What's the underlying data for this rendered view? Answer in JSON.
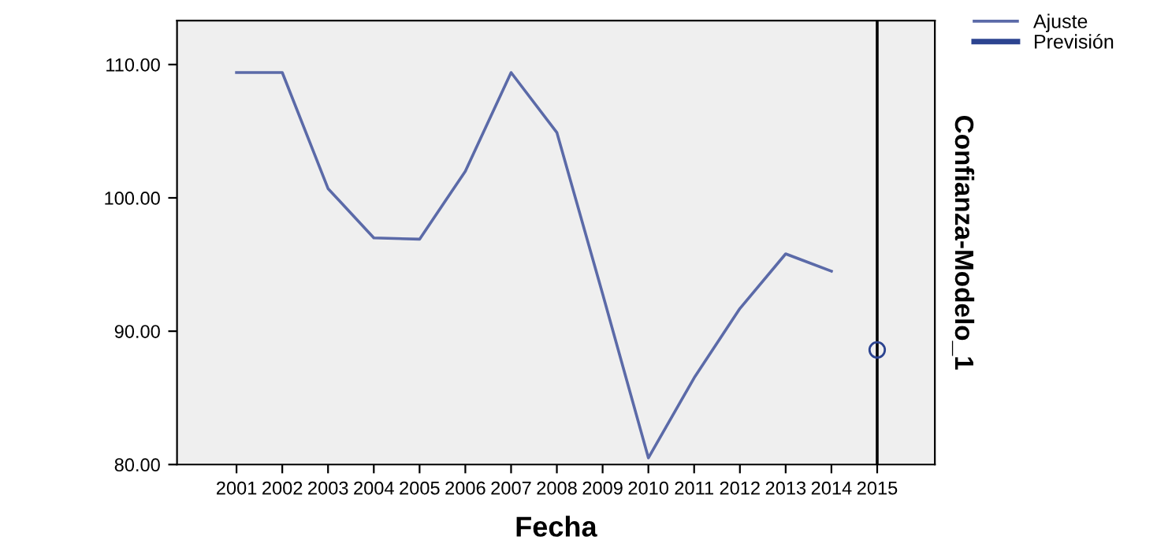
{
  "chart_data": {
    "type": "line",
    "xlabel": "Fecha",
    "ylabel": "Confianza-Modelo_1",
    "categories": [
      "2001",
      "2002",
      "2003",
      "2004",
      "2005",
      "2006",
      "2007",
      "2008",
      "2009",
      "2010",
      "2011",
      "2012",
      "2013",
      "2014",
      "2015"
    ],
    "series": [
      {
        "name": "Ajuste",
        "color": "#5b6aa8",
        "marker": "none",
        "values": [
          109.4,
          109.4,
          100.7,
          97.0,
          96.9,
          102.0,
          109.4,
          104.9,
          92.8,
          80.5,
          86.5,
          91.7,
          95.8,
          94.5,
          null
        ]
      },
      {
        "name": "Previsión",
        "color": "#2c4490",
        "marker": "circle",
        "values": [
          null,
          null,
          null,
          null,
          null,
          null,
          null,
          null,
          null,
          null,
          null,
          null,
          null,
          null,
          88.6
        ]
      }
    ],
    "ylim": [
      80,
      113.3
    ],
    "yticks": [
      {
        "value": 80,
        "label": "80.00"
      },
      {
        "value": 90,
        "label": "90.00"
      },
      {
        "value": 100,
        "label": "100.00"
      },
      {
        "value": 110,
        "label": "110.00"
      }
    ],
    "ref_lines": [
      {
        "axis": "x",
        "value": "2015",
        "color": "#000000"
      }
    ],
    "grid": false,
    "legend": "top right"
  }
}
